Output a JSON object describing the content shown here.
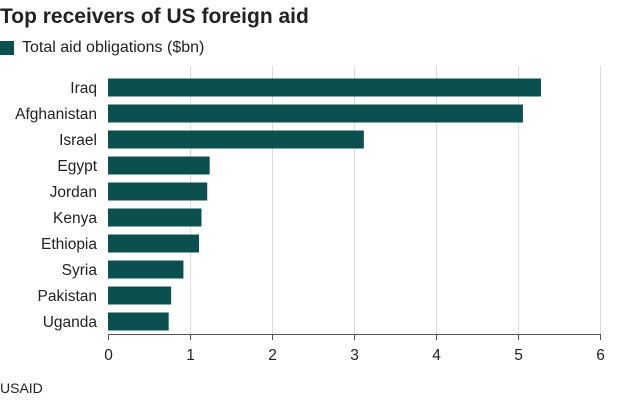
{
  "chart_data": {
    "type": "bar",
    "orientation": "horizontal",
    "title": "Top receivers of US foreign aid",
    "categories": [
      "Iraq",
      "Afghanistan",
      "Israel",
      "Egypt",
      "Jordan",
      "Kenya",
      "Ethiopia",
      "Syria",
      "Pakistan",
      "Uganda"
    ],
    "series": [
      {
        "name": "Total aid obligations ($bn)",
        "values": [
          5.28,
          5.06,
          3.12,
          1.24,
          1.21,
          1.14,
          1.11,
          0.92,
          0.77,
          0.74
        ],
        "color": "#0b4f4f"
      }
    ],
    "xlim": [
      0,
      6
    ],
    "xticks": [
      0,
      1,
      2,
      3,
      4,
      5,
      6
    ],
    "grid": true,
    "legend_position": "top-left",
    "source": "USAID"
  }
}
